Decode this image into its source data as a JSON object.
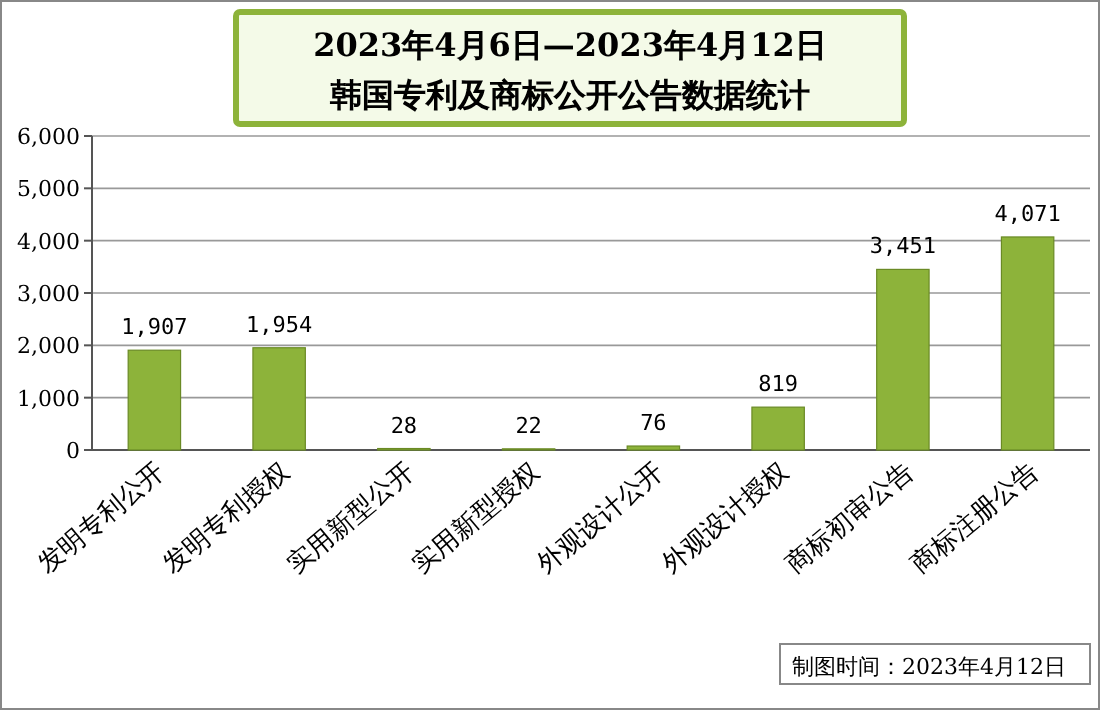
{
  "chart_data": {
    "type": "bar",
    "title": "2023年4月6日—2023年4月12日",
    "subtitle": "韩国专利及商标公开公告数据统计",
    "categories": [
      "发明专利公开",
      "发明专利授权",
      "实用新型公开",
      "实用新型授权",
      "外观设计公开",
      "外观设计授权",
      "商标初审公告",
      "商标注册公告"
    ],
    "values": [
      1907,
      1954,
      28,
      22,
      76,
      819,
      3451,
      4071
    ],
    "color": "#8db33a",
    "value_labels": [
      "1,907",
      "1,954",
      "28",
      "22",
      "76",
      "819",
      "3,451",
      "4,071"
    ],
    "ylim": [
      0,
      6000
    ],
    "yticks": [
      0,
      {
        "value": 1000,
        "label": "1,000"
      },
      {
        "value": 2000,
        "label": "2,000"
      },
      {
        "value": 3000,
        "label": "3,000"
      },
      {
        "value": 4000,
        "label": "4,000"
      },
      {
        "value": 5000,
        "label": "5,000"
      },
      {
        "value": 6000,
        "label": "6,000"
      }
    ],
    "grid": "y",
    "annotations": [
      "制图时间：2023年4月12日"
    ]
  }
}
